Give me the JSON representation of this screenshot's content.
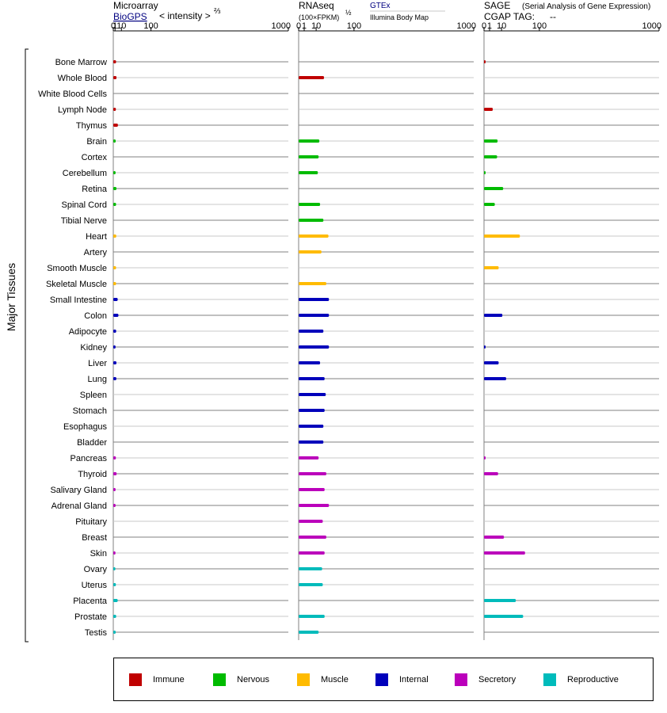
{
  "panels": {
    "microarray": {
      "title": "Microarray",
      "source_link": "BioGPS",
      "unit": "< intensity >",
      "unit_exponent": "⅔"
    },
    "rnaseq": {
      "title": "RNAseq",
      "unit": "(100×FPKM)",
      "unit_exponent": "½",
      "source_link": "GTEx",
      "source_secondary": "Illumina Body Map"
    },
    "sage": {
      "title": "SAGE",
      "subtitle": "(Serial Analysis of Gene Expression)",
      "tag_label": "CGAP TAG:",
      "tag_value": "--"
    }
  },
  "group_label": "Major Tissues",
  "colors": {
    "immune": "#c00000",
    "nervous": "#00bb00",
    "muscle": "#ffbb00",
    "internal": "#0000bb",
    "secretory": "#bb00bb",
    "reproductive": "#00bbbb",
    "link": "#000080",
    "row_line_dark": "#808080",
    "row_line_light": "#c8c8c8"
  },
  "legend": [
    {
      "key": "immune",
      "label": "Immune"
    },
    {
      "key": "nervous",
      "label": "Nervous"
    },
    {
      "key": "muscle",
      "label": "Muscle"
    },
    {
      "key": "internal",
      "label": "Internal"
    },
    {
      "key": "secretory",
      "label": "Secretory"
    },
    {
      "key": "reproductive",
      "label": "Reproductive"
    }
  ],
  "chart_data": {
    "type": "bar",
    "orientation": "horizontal",
    "x_scale": "root-transformed (ticks 0, 1, 10, 100, 1000)",
    "xlim": [
      0,
      1000
    ],
    "x_ticks": [
      "0",
      "1",
      "10",
      "100",
      "1000"
    ],
    "categories": [
      "Bone Marrow",
      "Whole Blood",
      "White Blood Cells",
      "Lymph Node",
      "Thymus",
      "Brain",
      "Cortex",
      "Cerebellum",
      "Retina",
      "Spinal Cord",
      "Tibial Nerve",
      "Heart",
      "Artery",
      "Smooth Muscle",
      "Skeletal Muscle",
      "Small Intestine",
      "Colon",
      "Adipocyte",
      "Kidney",
      "Liver",
      "Lung",
      "Spleen",
      "Stomach",
      "Esophagus",
      "Bladder",
      "Pancreas",
      "Thyroid",
      "Salivary Gland",
      "Adrenal Gland",
      "Pituitary",
      "Breast",
      "Skin",
      "Ovary",
      "Uterus",
      "Placenta",
      "Prostate",
      "Testis"
    ],
    "groups": [
      "immune",
      "immune",
      "immune",
      "immune",
      "immune",
      "nervous",
      "nervous",
      "nervous",
      "nervous",
      "nervous",
      "nervous",
      "muscle",
      "muscle",
      "muscle",
      "muscle",
      "internal",
      "internal",
      "internal",
      "internal",
      "internal",
      "internal",
      "internal",
      "internal",
      "internal",
      "internal",
      "secretory",
      "secretory",
      "secretory",
      "secretory",
      "secretory",
      "secretory",
      "secretory",
      "reproductive",
      "reproductive",
      "reproductive",
      "reproductive",
      "reproductive"
    ],
    "series": [
      {
        "name": "Microarray",
        "values": [
          2.0,
          2.5,
          null,
          1.8,
          4.3,
          1.6,
          null,
          1.5,
          2.4,
          2.0,
          null,
          2.2,
          null,
          2.0,
          2.0,
          4.0,
          5.0,
          2.1,
          1.5,
          2.4,
          2.3,
          null,
          null,
          null,
          null,
          1.8,
          2.6,
          1.5,
          1.5,
          null,
          null,
          1.4,
          1.3,
          1.8,
          4.0,
          2.1,
          1.6
        ]
      },
      {
        "name": "RNAseq",
        "values": [
          null,
          21,
          null,
          null,
          null,
          14,
          13,
          12,
          null,
          15,
          20,
          29,
          17,
          null,
          25,
          30,
          30,
          20,
          30,
          15,
          22,
          24,
          22,
          20,
          20,
          13,
          25,
          22,
          30,
          19,
          25,
          22,
          18,
          19,
          null,
          22,
          13
        ]
      },
      {
        "name": "SAGE",
        "values": [
          0.01,
          null,
          null,
          2.5,
          null,
          6.0,
          5.6,
          0.01,
          12,
          3.8,
          null,
          42,
          null,
          7.0,
          null,
          null,
          11,
          null,
          0.01,
          7.0,
          16,
          null,
          null,
          null,
          null,
          0.01,
          6.5,
          null,
          null,
          null,
          13,
          55,
          null,
          null,
          33,
          50,
          null
        ]
      }
    ]
  }
}
